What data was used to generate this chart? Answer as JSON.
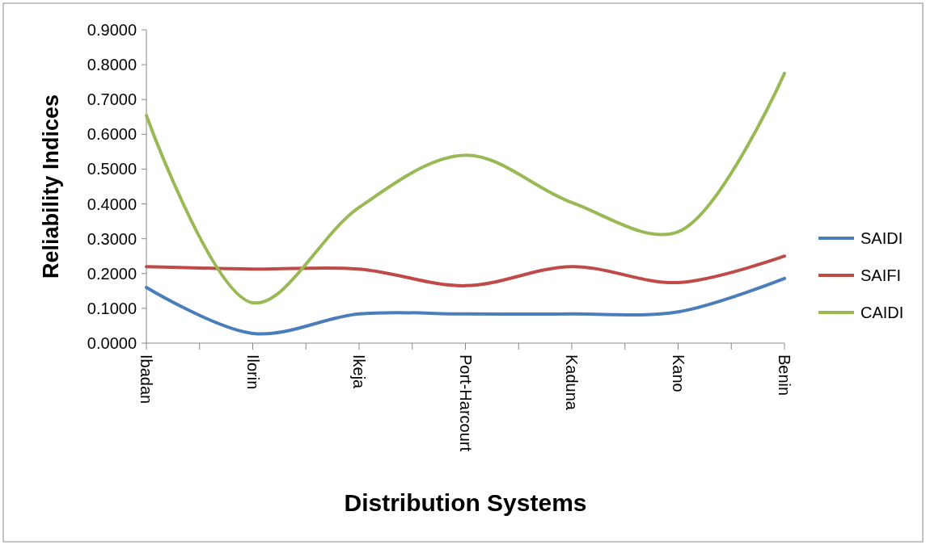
{
  "chart_data": {
    "type": "line",
    "xlabel": "Distribution Systems",
    "ylabel": "Reliability Indices",
    "categories": [
      "Ibadan",
      "Ilorin",
      "Ikeja",
      "Port-Harcourt",
      "Kaduna",
      "Kano",
      "Benin"
    ],
    "series": [
      {
        "name": "SAIDI",
        "color": "#4a7ebb",
        "values": [
          0.16,
          0.028,
          0.084,
          0.084,
          0.084,
          0.09,
          0.186
        ]
      },
      {
        "name": "SAIFI",
        "color": "#be4b48",
        "values": [
          0.22,
          0.213,
          0.213,
          0.165,
          0.22,
          0.174,
          0.25
        ]
      },
      {
        "name": "CAIDI",
        "color": "#98b954",
        "values": [
          0.654,
          0.116,
          0.39,
          0.54,
          0.404,
          0.32,
          0.775
        ]
      }
    ],
    "ylim": [
      0,
      0.9
    ],
    "yticks": [
      {
        "value": 0,
        "label": "0.0000"
      },
      {
        "value": 0.1,
        "label": "0.1000"
      },
      {
        "value": 0.2,
        "label": "0.2000"
      },
      {
        "value": 0.3,
        "label": "0.3000"
      },
      {
        "value": 0.4,
        "label": "0.4000"
      },
      {
        "value": 0.5,
        "label": "0.5000"
      },
      {
        "value": 0.6,
        "label": "0.6000"
      },
      {
        "value": 0.7,
        "label": "0.7000"
      },
      {
        "value": 0.8,
        "label": "0.8000"
      },
      {
        "value": 0.9,
        "label": "0.9000"
      }
    ],
    "legend": "right",
    "marker": "none",
    "line_style": "solid",
    "grid": false
  }
}
